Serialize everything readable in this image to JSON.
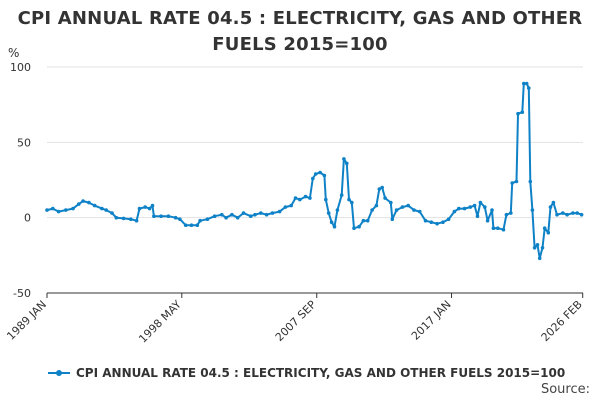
{
  "chart_data": {
    "type": "line",
    "title": "CPI ANNUAL RATE 04.5 : ELECTRICITY, GAS AND OTHER FUELS 2015=100",
    "title_lines": [
      "CPI ANNUAL RATE 04.5 : ELECTRICITY, GAS AND OTHER",
      "FUELS 2015=100"
    ],
    "ylabel": "%",
    "ylim": [
      -50,
      100
    ],
    "yticks": [
      -50,
      0,
      50,
      100
    ],
    "xlim": [
      1989.0,
      2026.1
    ],
    "xticks": [
      {
        "label": "1989 JAN",
        "value": 1989.0
      },
      {
        "label": "1998 MAY",
        "value": 1998.33
      },
      {
        "label": "2007 SEP",
        "value": 2007.67
      },
      {
        "label": "2017 JAN",
        "value": 2017.0
      },
      {
        "label": "2026 FEB",
        "value": 2026.08
      }
    ],
    "series": [
      {
        "name": "CPI ANNUAL RATE 04.5 : ELECTRICITY, GAS AND OTHER FUELS 2015=100",
        "color": "#0f82c7",
        "points": [
          [
            1989.0,
            5
          ],
          [
            1989.4,
            6
          ],
          [
            1989.8,
            4
          ],
          [
            1990.3,
            5
          ],
          [
            1990.8,
            6
          ],
          [
            1991.2,
            9
          ],
          [
            1991.5,
            11
          ],
          [
            1991.9,
            10
          ],
          [
            1992.3,
            8
          ],
          [
            1992.8,
            6
          ],
          [
            1993.1,
            5
          ],
          [
            1993.5,
            3
          ],
          [
            1993.8,
            0
          ],
          [
            1994.3,
            -0.5
          ],
          [
            1994.8,
            -1
          ],
          [
            1995.2,
            -2
          ],
          [
            1995.4,
            6
          ],
          [
            1995.8,
            7
          ],
          [
            1996.1,
            6
          ],
          [
            1996.3,
            8
          ],
          [
            1996.4,
            1
          ],
          [
            1996.9,
            1
          ],
          [
            1997.4,
            1
          ],
          [
            1997.9,
            0
          ],
          [
            1998.2,
            -1
          ],
          [
            1998.6,
            -5
          ],
          [
            1999.0,
            -5
          ],
          [
            1999.4,
            -5
          ],
          [
            1999.6,
            -2
          ],
          [
            2000.1,
            -1
          ],
          [
            2000.6,
            1
          ],
          [
            2001.1,
            2
          ],
          [
            2001.4,
            0
          ],
          [
            2001.8,
            2
          ],
          [
            2002.2,
            0
          ],
          [
            2002.6,
            3
          ],
          [
            2003.1,
            1
          ],
          [
            2003.4,
            2
          ],
          [
            2003.8,
            3
          ],
          [
            2004.2,
            2
          ],
          [
            2004.6,
            3
          ],
          [
            2005.1,
            4
          ],
          [
            2005.5,
            7
          ],
          [
            2005.9,
            8
          ],
          [
            2006.2,
            13
          ],
          [
            2006.5,
            12
          ],
          [
            2006.9,
            14
          ],
          [
            2007.2,
            13
          ],
          [
            2007.4,
            26
          ],
          [
            2007.6,
            29
          ],
          [
            2007.9,
            30
          ],
          [
            2008.2,
            28
          ],
          [
            2008.3,
            12
          ],
          [
            2008.5,
            3
          ],
          [
            2008.7,
            -3
          ],
          [
            2008.9,
            -6
          ],
          [
            2009.1,
            5
          ],
          [
            2009.4,
            15
          ],
          [
            2009.55,
            39
          ],
          [
            2009.75,
            36
          ],
          [
            2009.9,
            12
          ],
          [
            2010.1,
            10
          ],
          [
            2010.25,
            -7
          ],
          [
            2010.6,
            -6
          ],
          [
            2010.9,
            -2
          ],
          [
            2011.2,
            -2
          ],
          [
            2011.5,
            5
          ],
          [
            2011.8,
            8
          ],
          [
            2012.0,
            19
          ],
          [
            2012.2,
            20
          ],
          [
            2012.4,
            13
          ],
          [
            2012.8,
            10
          ],
          [
            2012.9,
            -1
          ],
          [
            2013.2,
            5
          ],
          [
            2013.6,
            7
          ],
          [
            2014.0,
            8
          ],
          [
            2014.4,
            5
          ],
          [
            2014.8,
            4
          ],
          [
            2015.2,
            -2
          ],
          [
            2015.6,
            -3
          ],
          [
            2016.0,
            -4
          ],
          [
            2016.4,
            -3
          ],
          [
            2016.8,
            -1
          ],
          [
            2017.2,
            4
          ],
          [
            2017.5,
            6
          ],
          [
            2017.9,
            6
          ],
          [
            2018.3,
            7
          ],
          [
            2018.6,
            8
          ],
          [
            2018.8,
            1
          ],
          [
            2019.0,
            10
          ],
          [
            2019.3,
            7
          ],
          [
            2019.5,
            -2
          ],
          [
            2019.8,
            5
          ],
          [
            2019.9,
            -7
          ],
          [
            2020.2,
            -7
          ],
          [
            2020.6,
            -8
          ],
          [
            2020.8,
            2
          ],
          [
            2021.1,
            3
          ],
          [
            2021.2,
            23
          ],
          [
            2021.5,
            24
          ],
          [
            2021.6,
            69
          ],
          [
            2021.9,
            70
          ],
          [
            2022.0,
            89
          ],
          [
            2022.2,
            89
          ],
          [
            2022.35,
            86
          ],
          [
            2022.45,
            24
          ],
          [
            2022.6,
            5
          ],
          [
            2022.75,
            -20
          ],
          [
            2022.95,
            -18
          ],
          [
            2023.1,
            -27
          ],
          [
            2023.3,
            -20
          ],
          [
            2023.45,
            -7
          ],
          [
            2023.7,
            -10
          ],
          [
            2023.85,
            7
          ],
          [
            2024.05,
            10
          ],
          [
            2024.3,
            2
          ],
          [
            2024.7,
            3
          ],
          [
            2025.0,
            2
          ],
          [
            2025.4,
            3
          ],
          [
            2025.7,
            3
          ],
          [
            2026.0,
            2
          ]
        ]
      }
    ],
    "legend": [
      "CPI ANNUAL RATE 04.5 : ELECTRICITY, GAS AND OTHER FUELS 2015=100"
    ],
    "source_label": "Source:"
  }
}
